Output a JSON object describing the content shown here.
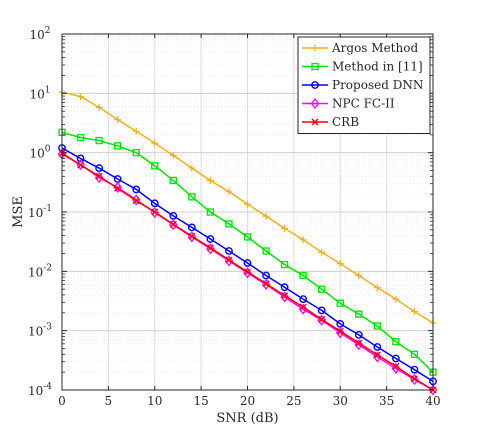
{
  "chart_data": {
    "type": "line",
    "title": "",
    "xlabel": "SNR (dB)",
    "ylabel": "MSE",
    "xlim": [
      0,
      40
    ],
    "ylim": [
      0.0001,
      100
    ],
    "yscale": "log",
    "grid": true,
    "legend_position": "top-right",
    "x_ticks": [
      0,
      5,
      10,
      15,
      20,
      25,
      30,
      35,
      40
    ],
    "y_ticks": [
      {
        "value": 0.0001,
        "base": "10",
        "exp": "-4"
      },
      {
        "value": 0.001,
        "base": "10",
        "exp": "-3"
      },
      {
        "value": 0.01,
        "base": "10",
        "exp": "-2"
      },
      {
        "value": 0.1,
        "base": "10",
        "exp": "-1"
      },
      {
        "value": 1,
        "base": "10",
        "exp": "0"
      },
      {
        "value": 10,
        "base": "10",
        "exp": "1"
      },
      {
        "value": 100,
        "base": "10",
        "exp": "2"
      }
    ],
    "x": [
      0,
      2,
      4,
      6,
      8,
      10,
      12,
      14,
      16,
      18,
      20,
      22,
      24,
      26,
      28,
      30,
      32,
      34,
      36,
      38,
      40
    ],
    "series": [
      {
        "name": "Argos Method",
        "color": "#EDB120",
        "marker": "plus",
        "values": [
          10.5,
          8.8,
          5.8,
          3.6,
          2.3,
          1.45,
          0.9,
          0.55,
          0.34,
          0.22,
          0.135,
          0.085,
          0.053,
          0.034,
          0.021,
          0.0135,
          0.0085,
          0.0053,
          0.0034,
          0.0021,
          0.00135
        ]
      },
      {
        "name": "Method in [11]",
        "color": "#00E000",
        "marker": "square",
        "values": [
          2.2,
          1.8,
          1.6,
          1.3,
          1.0,
          0.6,
          0.34,
          0.18,
          0.1,
          0.063,
          0.038,
          0.022,
          0.013,
          0.0085,
          0.005,
          0.0029,
          0.0019,
          0.0012,
          0.00065,
          0.0004,
          0.0002
        ]
      },
      {
        "name": "Proposed DNN",
        "color": "#0000FF",
        "marker": "circle",
        "values": [
          1.2,
          0.8,
          0.55,
          0.36,
          0.24,
          0.14,
          0.086,
          0.055,
          0.035,
          0.022,
          0.0138,
          0.0085,
          0.0054,
          0.0034,
          0.0022,
          0.0013,
          0.00085,
          0.00053,
          0.00034,
          0.00022,
          0.00014
        ]
      },
      {
        "name": "NPC FC-II",
        "color": "#FF00FF",
        "marker": "diamond",
        "values": [
          0.95,
          0.63,
          0.38,
          0.26,
          0.16,
          0.098,
          0.061,
          0.038,
          0.024,
          0.015,
          0.0094,
          0.006,
          0.0037,
          0.0023,
          0.0015,
          0.00092,
          0.00058,
          0.00036,
          0.00023,
          0.00015,
          0.0001
        ]
      },
      {
        "name": "CRB",
        "color": "#FF0000",
        "marker": "x",
        "values": [
          0.98,
          0.62,
          0.4,
          0.25,
          0.155,
          0.1,
          0.062,
          0.039,
          0.025,
          0.0155,
          0.0098,
          0.0062,
          0.0039,
          0.0025,
          0.00155,
          0.00098,
          0.00062,
          0.00039,
          0.00025,
          0.000155,
          0.0001
        ]
      }
    ]
  }
}
